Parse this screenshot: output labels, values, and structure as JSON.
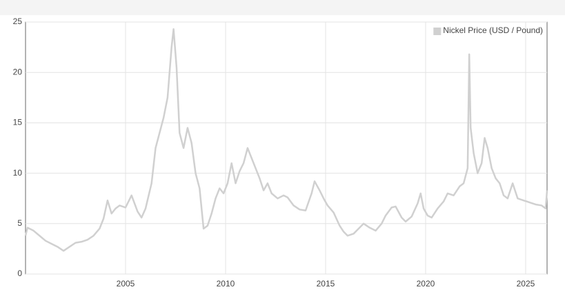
{
  "chart_data": {
    "type": "line",
    "series": [
      {
        "name": "Nickel Price (USD / Pound)",
        "color": "#d0d0d0",
        "x": [
          2000.0,
          2000.1,
          2000.4,
          2000.7,
          2001.0,
          2001.3,
          2001.6,
          2001.9,
          2002.2,
          2002.5,
          2002.8,
          2003.1,
          2003.4,
          2003.7,
          2003.9,
          2004.1,
          2004.3,
          2004.5,
          2004.7,
          2005.0,
          2005.3,
          2005.6,
          2005.8,
          2006.0,
          2006.3,
          2006.5,
          2006.7,
          2006.9,
          2007.1,
          2007.3,
          2007.4,
          2007.55,
          2007.7,
          2007.9,
          2008.1,
          2008.3,
          2008.5,
          2008.7,
          2008.9,
          2009.1,
          2009.3,
          2009.5,
          2009.7,
          2009.9,
          2010.1,
          2010.3,
          2010.5,
          2010.7,
          2010.9,
          2011.1,
          2011.3,
          2011.5,
          2011.7,
          2011.9,
          2012.1,
          2012.3,
          2012.6,
          2012.9,
          2013.1,
          2013.4,
          2013.7,
          2014.0,
          2014.3,
          2014.45,
          2014.7,
          2014.9,
          2015.1,
          2015.4,
          2015.7,
          2015.9,
          2016.1,
          2016.4,
          2016.7,
          2016.9,
          2017.2,
          2017.5,
          2017.8,
          2018.0,
          2018.3,
          2018.5,
          2018.8,
          2019.0,
          2019.3,
          2019.6,
          2019.75,
          2019.9,
          2020.1,
          2020.3,
          2020.6,
          2020.9,
          2021.1,
          2021.4,
          2021.7,
          2021.9,
          2022.1,
          2022.18,
          2022.25,
          2022.4,
          2022.6,
          2022.8,
          2022.95,
          2023.1,
          2023.3,
          2023.5,
          2023.7,
          2023.9,
          2024.1,
          2024.35,
          2024.6,
          2024.9,
          2025.2,
          2025.5,
          2025.8,
          2026.0,
          2026.07
        ],
        "values": [
          3.8,
          4.6,
          4.3,
          3.8,
          3.3,
          3.0,
          2.7,
          2.3,
          2.7,
          3.1,
          3.2,
          3.4,
          3.8,
          4.5,
          5.5,
          7.3,
          6.0,
          6.5,
          6.8,
          6.6,
          7.8,
          6.2,
          5.6,
          6.5,
          9.0,
          12.5,
          14.0,
          15.5,
          17.5,
          22.5,
          24.3,
          20.5,
          14.0,
          12.5,
          14.5,
          13.0,
          10.0,
          8.5,
          4.5,
          4.8,
          6.0,
          7.5,
          8.5,
          8.0,
          9.0,
          11.0,
          9.0,
          10.2,
          11.0,
          12.5,
          11.5,
          10.5,
          9.5,
          8.3,
          9.0,
          8.0,
          7.5,
          7.8,
          7.6,
          6.8,
          6.4,
          6.3,
          8.0,
          9.2,
          8.3,
          7.5,
          6.8,
          6.1,
          4.8,
          4.2,
          3.8,
          4.0,
          4.6,
          5.0,
          4.6,
          4.3,
          5.0,
          5.8,
          6.6,
          6.7,
          5.6,
          5.2,
          5.7,
          7.0,
          8.0,
          6.5,
          5.8,
          5.6,
          6.5,
          7.2,
          8.0,
          7.8,
          8.7,
          9.0,
          10.5,
          21.8,
          14.5,
          12.0,
          10.0,
          11.0,
          13.5,
          12.5,
          10.5,
          9.5,
          9.0,
          7.8,
          7.5,
          9.0,
          7.5,
          7.3,
          7.1,
          6.9,
          6.8,
          6.5,
          8.3
        ]
      }
    ],
    "xlim": [
      2000,
      2026.07
    ],
    "xticks": [
      2005,
      2010,
      2015,
      2020,
      2025
    ],
    "ylim": [
      0,
      25
    ],
    "yticks": [
      0,
      5,
      10,
      15,
      20,
      25
    ],
    "grid": true,
    "legend": "top-right"
  }
}
